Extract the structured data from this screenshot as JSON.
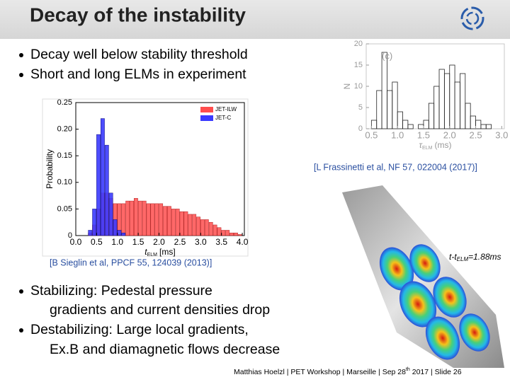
{
  "header": {
    "title": "Decay of the instability"
  },
  "bullets_top": [
    "Decay well below stability threshold",
    "Short and long ELMs in experiment"
  ],
  "citations": [
    "[L Frassinetti et al, NF 57, 022004 (2017)]",
    "[B Sieglin et al, PPCF 55, 124039 (2013)]"
  ],
  "bullets_bottom": [
    [
      "Stabilizing: Pedestal pressure",
      "gradients and current densities drop"
    ],
    [
      "Destabilizing: Large local gradients,",
      "Ex.B and diamagnetic flows decrease"
    ]
  ],
  "surface_label": {
    "text": "t-t",
    "sub": "ELM",
    "rest": "=1.88ms"
  },
  "footer": {
    "text": "Matthias Hoelzl | PET Workshop | Marseille | Sep 28",
    "sup": "th",
    "rest": " 2017 |  Slide 26"
  },
  "chart_data": [
    {
      "type": "histogram",
      "ylabel": "Probability",
      "xlabel": "t",
      "xlabel_sub": "ELM",
      "xlabel_unit": "[ms]",
      "bins": [
        0.2,
        0.3,
        0.4,
        0.5,
        0.6,
        0.7,
        0.8,
        0.9,
        1.0,
        1.1,
        1.2,
        1.3,
        1.4,
        1.5,
        1.6,
        1.7,
        1.8,
        1.9,
        2.0,
        2.1,
        2.2,
        2.3,
        2.4,
        2.5,
        2.6,
        2.7,
        2.8,
        2.9,
        3.0,
        3.1,
        3.2,
        3.3,
        3.4,
        3.5,
        3.6,
        3.7,
        3.8,
        3.9,
        4.0
      ],
      "series": [
        {
          "name": "JET-ILW",
          "color": "#ff4d4d",
          "values": [
            0,
            0.005,
            0.02,
            0.05,
            0.08,
            0.08,
            0.07,
            0.06,
            0.06,
            0.06,
            0.065,
            0.065,
            0.07,
            0.065,
            0.065,
            0.06,
            0.06,
            0.06,
            0.06,
            0.055,
            0.055,
            0.05,
            0.05,
            0.045,
            0.045,
            0.04,
            0.04,
            0.035,
            0.03,
            0.03,
            0.025,
            0.02,
            0.015,
            0.01,
            0.01,
            0.005,
            0.005,
            0.002
          ]
        },
        {
          "name": "JET-C",
          "color": "#3a3aff",
          "values": [
            0,
            0.01,
            0.05,
            0.19,
            0.22,
            0.17,
            0.08,
            0.03,
            0.01,
            0.005,
            0,
            0,
            0,
            0,
            0,
            0,
            0,
            0,
            0,
            0,
            0,
            0,
            0,
            0,
            0,
            0,
            0,
            0,
            0,
            0,
            0,
            0,
            0,
            0,
            0,
            0,
            0,
            0
          ]
        }
      ],
      "xlim": [
        0,
        4.05
      ],
      "ylim": [
        0,
        0.25
      ],
      "xticks": [
        {
          "value": 0,
          "label": "0.0"
        },
        0.5,
        {
          "value": 1,
          "label": "1.0"
        },
        1.5,
        {
          "value": 2,
          "label": "2.0"
        },
        2.5,
        {
          "value": 3,
          "label": "3.0"
        },
        3.5,
        {
          "value": 4,
          "label": "4.0"
        }
      ],
      "yticks": [
        0,
        0.05,
        {
          "value": 0.1,
          "label": "0.10"
        },
        0.15,
        {
          "value": 0.2,
          "label": "0.20"
        },
        0.25
      ],
      "legend": "upper right"
    },
    {
      "type": "histogram",
      "ylabel": "N",
      "xlabel": "τ",
      "xlabel_sub": "ELM",
      "xlabel_unit": "(ms)",
      "annotation": "(c)",
      "bins": [
        0.5,
        0.6,
        0.7,
        0.8,
        0.9,
        1.0,
        1.1,
        1.2,
        1.3,
        1.4,
        1.5,
        1.6,
        1.7,
        1.8,
        1.9,
        2.0,
        2.1,
        2.2,
        2.3,
        2.4,
        2.5,
        2.6,
        2.7,
        2.8,
        2.9
      ],
      "series": [
        {
          "color": "#222222",
          "values": [
            2,
            9,
            18,
            9,
            11,
            4,
            2,
            1,
            0,
            1,
            2,
            6,
            10,
            14,
            13,
            15,
            11,
            13,
            6,
            3,
            2,
            1,
            1,
            0
          ]
        }
      ],
      "xlim": [
        0.4,
        3.05
      ],
      "ylim": [
        0,
        20
      ],
      "xticks": [
        0.5,
        {
          "value": 1,
          "label": "1.0"
        },
        1.5,
        {
          "value": 2,
          "label": "2.0"
        },
        2.5,
        {
          "value": 3,
          "label": "3.0"
        }
      ],
      "yticks": [
        0,
        5,
        10,
        15,
        20
      ]
    }
  ]
}
